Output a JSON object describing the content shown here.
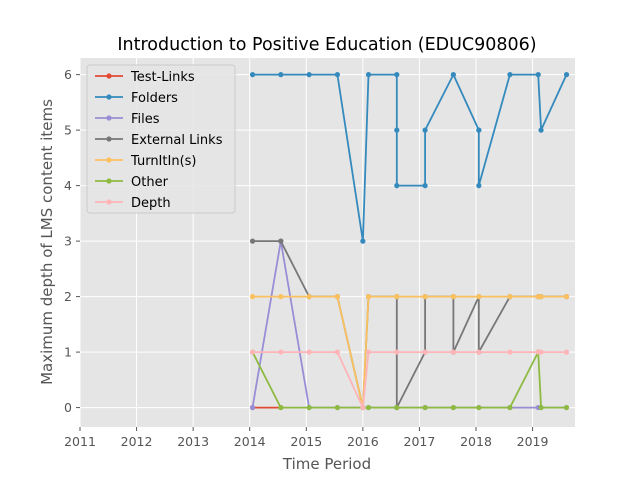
{
  "chart_data": {
    "type": "line",
    "title": "Introduction to Positive Education (EDUC90806)",
    "xlabel": "Time Period",
    "ylabel": "Maximum depth of LMS content items",
    "xlim": [
      2011,
      2019.75
    ],
    "ylim": [
      -0.35,
      6.3
    ],
    "xticks": [
      2011,
      2012,
      2013,
      2014,
      2015,
      2016,
      2017,
      2018,
      2019
    ],
    "yticks": [
      0,
      1,
      2,
      3,
      4,
      5,
      6
    ],
    "grid": true,
    "legend_position": "top-left",
    "background": "#e5e5e5",
    "grid_color": "#ffffff",
    "series": [
      {
        "name": "Test-Links",
        "color": "#e24a33",
        "points": [
          [
            2014.05,
            0
          ],
          [
            2014.55,
            0
          ]
        ]
      },
      {
        "name": "Folders",
        "color": "#348abd",
        "points": [
          [
            2014.05,
            6
          ],
          [
            2014.55,
            6
          ],
          [
            2015.05,
            6
          ],
          [
            2015.55,
            6
          ],
          [
            2016.0,
            3
          ],
          [
            2016.1,
            6
          ],
          [
            2016.6,
            6
          ],
          [
            2016.6,
            5
          ],
          [
            2016.6,
            4
          ],
          [
            2017.1,
            4
          ],
          [
            2017.1,
            5
          ],
          [
            2017.6,
            6
          ],
          [
            2018.05,
            5
          ],
          [
            2018.05,
            5
          ],
          [
            2018.05,
            4
          ],
          [
            2018.6,
            6
          ],
          [
            2019.1,
            6
          ],
          [
            2019.15,
            5
          ],
          [
            2019.6,
            6
          ]
        ]
      },
      {
        "name": "Files",
        "color": "#988ed5",
        "points": [
          [
            2014.05,
            0
          ],
          [
            2014.55,
            3
          ],
          [
            2015.05,
            0
          ],
          [
            2015.55,
            0
          ],
          [
            2016.0,
            0
          ],
          [
            2016.1,
            0
          ],
          [
            2016.6,
            0
          ],
          [
            2017.1,
            0
          ],
          [
            2017.6,
            0
          ],
          [
            2018.05,
            0
          ],
          [
            2018.6,
            0
          ],
          [
            2019.1,
            0
          ],
          [
            2019.15,
            0
          ],
          [
            2019.6,
            0
          ]
        ]
      },
      {
        "name": "External Links",
        "color": "#777777",
        "points": [
          [
            2014.05,
            3
          ],
          [
            2014.55,
            3
          ],
          [
            2015.05,
            2
          ],
          [
            2015.55,
            2
          ],
          [
            2016.0,
            0
          ],
          [
            2016.1,
            2
          ],
          [
            2016.6,
            2
          ],
          [
            2016.6,
            0
          ],
          [
            2017.1,
            1
          ],
          [
            2017.1,
            2
          ],
          [
            2017.6,
            2
          ],
          [
            2017.6,
            1
          ],
          [
            2018.05,
            2
          ],
          [
            2018.05,
            1
          ],
          [
            2018.6,
            2
          ],
          [
            2019.1,
            2
          ],
          [
            2019.15,
            2
          ],
          [
            2019.6,
            2
          ]
        ]
      },
      {
        "name": "TurnItIn(s)",
        "color": "#fbc15e",
        "points": [
          [
            2014.05,
            2
          ],
          [
            2014.55,
            2
          ],
          [
            2015.05,
            2
          ],
          [
            2015.55,
            2
          ],
          [
            2016.0,
            0
          ],
          [
            2016.1,
            2
          ],
          [
            2016.6,
            2
          ],
          [
            2017.1,
            2
          ],
          [
            2017.6,
            2
          ],
          [
            2018.05,
            2
          ],
          [
            2018.6,
            2
          ],
          [
            2019.1,
            2
          ],
          [
            2019.15,
            2
          ],
          [
            2019.6,
            2
          ]
        ]
      },
      {
        "name": "Other",
        "color": "#8eba42",
        "points": [
          [
            2014.05,
            1
          ],
          [
            2014.55,
            0
          ],
          [
            2015.05,
            0
          ],
          [
            2015.55,
            0
          ],
          [
            2016.0,
            0
          ],
          [
            2016.1,
            0
          ],
          [
            2016.6,
            0
          ],
          [
            2017.1,
            0
          ],
          [
            2017.6,
            0
          ],
          [
            2018.05,
            0
          ],
          [
            2018.6,
            0
          ],
          [
            2019.1,
            1
          ],
          [
            2019.15,
            0
          ],
          [
            2019.6,
            0
          ]
        ]
      },
      {
        "name": "Depth",
        "color": "#ffb5b8",
        "points": [
          [
            2014.05,
            1
          ],
          [
            2014.55,
            1
          ],
          [
            2015.05,
            1
          ],
          [
            2015.55,
            1
          ],
          [
            2016.0,
            0
          ],
          [
            2016.1,
            1
          ],
          [
            2016.6,
            1
          ],
          [
            2017.1,
            1
          ],
          [
            2017.6,
            1
          ],
          [
            2018.05,
            1
          ],
          [
            2018.6,
            1
          ],
          [
            2019.1,
            1
          ],
          [
            2019.15,
            1
          ],
          [
            2019.6,
            1
          ]
        ]
      }
    ]
  }
}
